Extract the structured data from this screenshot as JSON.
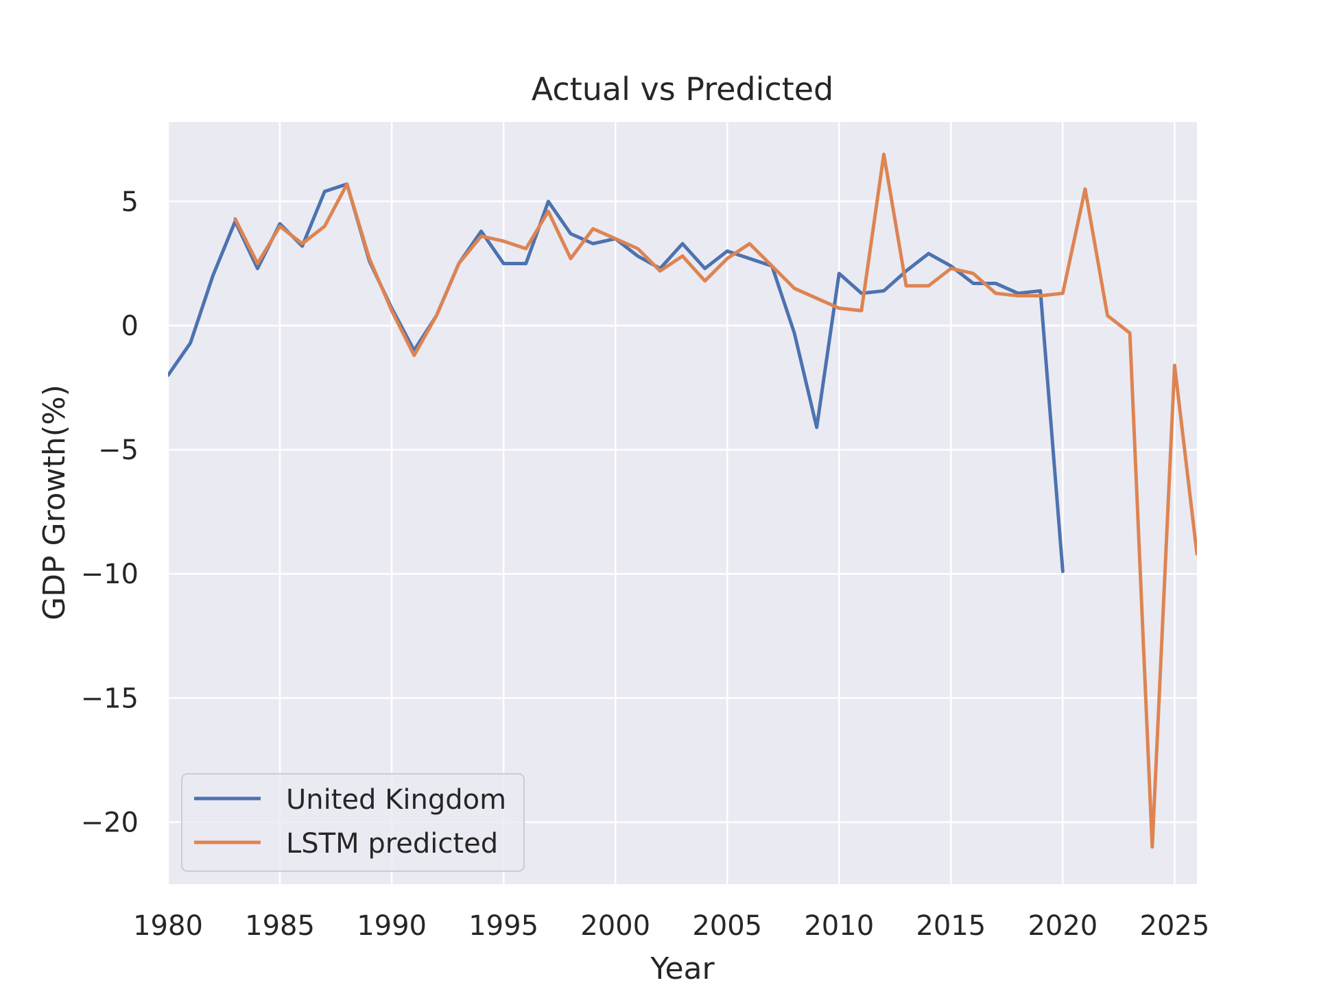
{
  "chart_data": {
    "type": "line",
    "title": "Actual vs Predicted",
    "xlabel": "Year",
    "ylabel": "GDP Growth(%)",
    "xlim": [
      1980,
      2026
    ],
    "ylim": [
      -22.5,
      8.2
    ],
    "xticks": [
      1980,
      1985,
      1990,
      1995,
      2000,
      2005,
      2010,
      2015,
      2020,
      2025
    ],
    "yticks": [
      5,
      0,
      -5,
      -10,
      -15,
      -20
    ],
    "ytick_labels": [
      "5",
      "0",
      "−5",
      "−10",
      "−15",
      "−20"
    ],
    "grid": true,
    "legend_position": "lower-left",
    "series": [
      {
        "name": "United Kingdom",
        "color": "#4c72b0",
        "x": [
          1980,
          1981,
          1982,
          1983,
          1984,
          1985,
          1986,
          1987,
          1988,
          1989,
          1990,
          1991,
          1992,
          1993,
          1994,
          1995,
          1996,
          1997,
          1998,
          1999,
          2000,
          2001,
          2002,
          2003,
          2004,
          2005,
          2006,
          2007,
          2008,
          2009,
          2010,
          2011,
          2012,
          2013,
          2014,
          2015,
          2016,
          2017,
          2018,
          2019,
          2020
        ],
        "y": [
          -2.0,
          -0.7,
          2.0,
          4.2,
          2.3,
          4.1,
          3.2,
          5.4,
          5.7,
          2.6,
          0.7,
          -1.0,
          0.4,
          2.5,
          3.8,
          2.5,
          2.5,
          5.0,
          3.7,
          3.3,
          3.5,
          2.8,
          2.3,
          3.3,
          2.3,
          3.0,
          2.7,
          2.4,
          -0.3,
          -4.1,
          2.1,
          1.3,
          1.4,
          2.2,
          2.9,
          2.4,
          1.7,
          1.7,
          1.3,
          1.4,
          -9.9
        ]
      },
      {
        "name": "LSTM predicted",
        "color": "#dd8452",
        "x": [
          1983,
          1984,
          1985,
          1986,
          1987,
          1988,
          1989,
          1990,
          1991,
          1992,
          1993,
          1994,
          1995,
          1996,
          1997,
          1998,
          1999,
          2000,
          2001,
          2002,
          2003,
          2004,
          2005,
          2006,
          2007,
          2008,
          2009,
          2010,
          2011,
          2012,
          2013,
          2014,
          2015,
          2016,
          2017,
          2018,
          2019,
          2020,
          2021,
          2022,
          2023,
          2024,
          2025,
          2026
        ],
        "y": [
          4.3,
          2.5,
          4.0,
          3.3,
          4.0,
          5.7,
          2.7,
          0.6,
          -1.2,
          0.4,
          2.5,
          3.6,
          3.4,
          3.1,
          4.6,
          2.7,
          3.9,
          3.5,
          3.1,
          2.2,
          2.8,
          1.8,
          2.7,
          3.3,
          2.4,
          1.5,
          1.1,
          0.7,
          0.6,
          6.9,
          1.6,
          1.6,
          2.3,
          2.1,
          1.3,
          1.2,
          1.2,
          1.3,
          5.5,
          0.4,
          -0.3,
          -21.0,
          -1.6,
          -9.2
        ]
      }
    ]
  }
}
